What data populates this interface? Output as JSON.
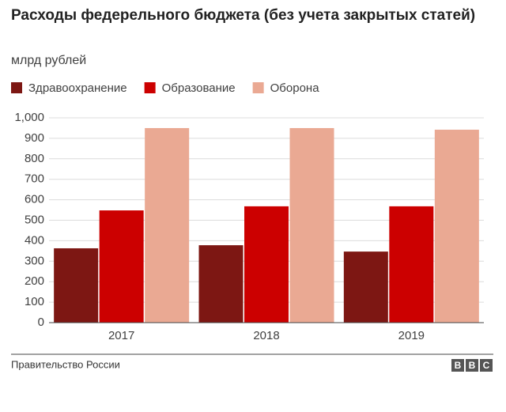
{
  "chart_data": {
    "type": "bar",
    "title": "Расходы федерельного бюджета (без учета закрытых статей)",
    "subtitle": "млрд рублей",
    "categories": [
      "2017",
      "2018",
      "2019"
    ],
    "series": [
      {
        "name": "Здравоохранение",
        "color": "#7d1713",
        "values": [
          363,
          378,
          347
        ]
      },
      {
        "name": "Образование",
        "color": "#cc0000",
        "values": [
          548,
          568,
          568
        ]
      },
      {
        "name": "Оборона",
        "color": "#eaa993",
        "values": [
          950,
          950,
          942
        ]
      }
    ],
    "ylim": [
      0,
      1000
    ],
    "yticks": [
      0,
      100,
      200,
      300,
      400,
      500,
      600,
      700,
      800,
      900,
      {
        "value": 1000,
        "label": "1,000"
      }
    ],
    "grid": true,
    "legend": "top",
    "source": "Правительство России",
    "logo": [
      "B",
      "B",
      "C"
    ]
  }
}
